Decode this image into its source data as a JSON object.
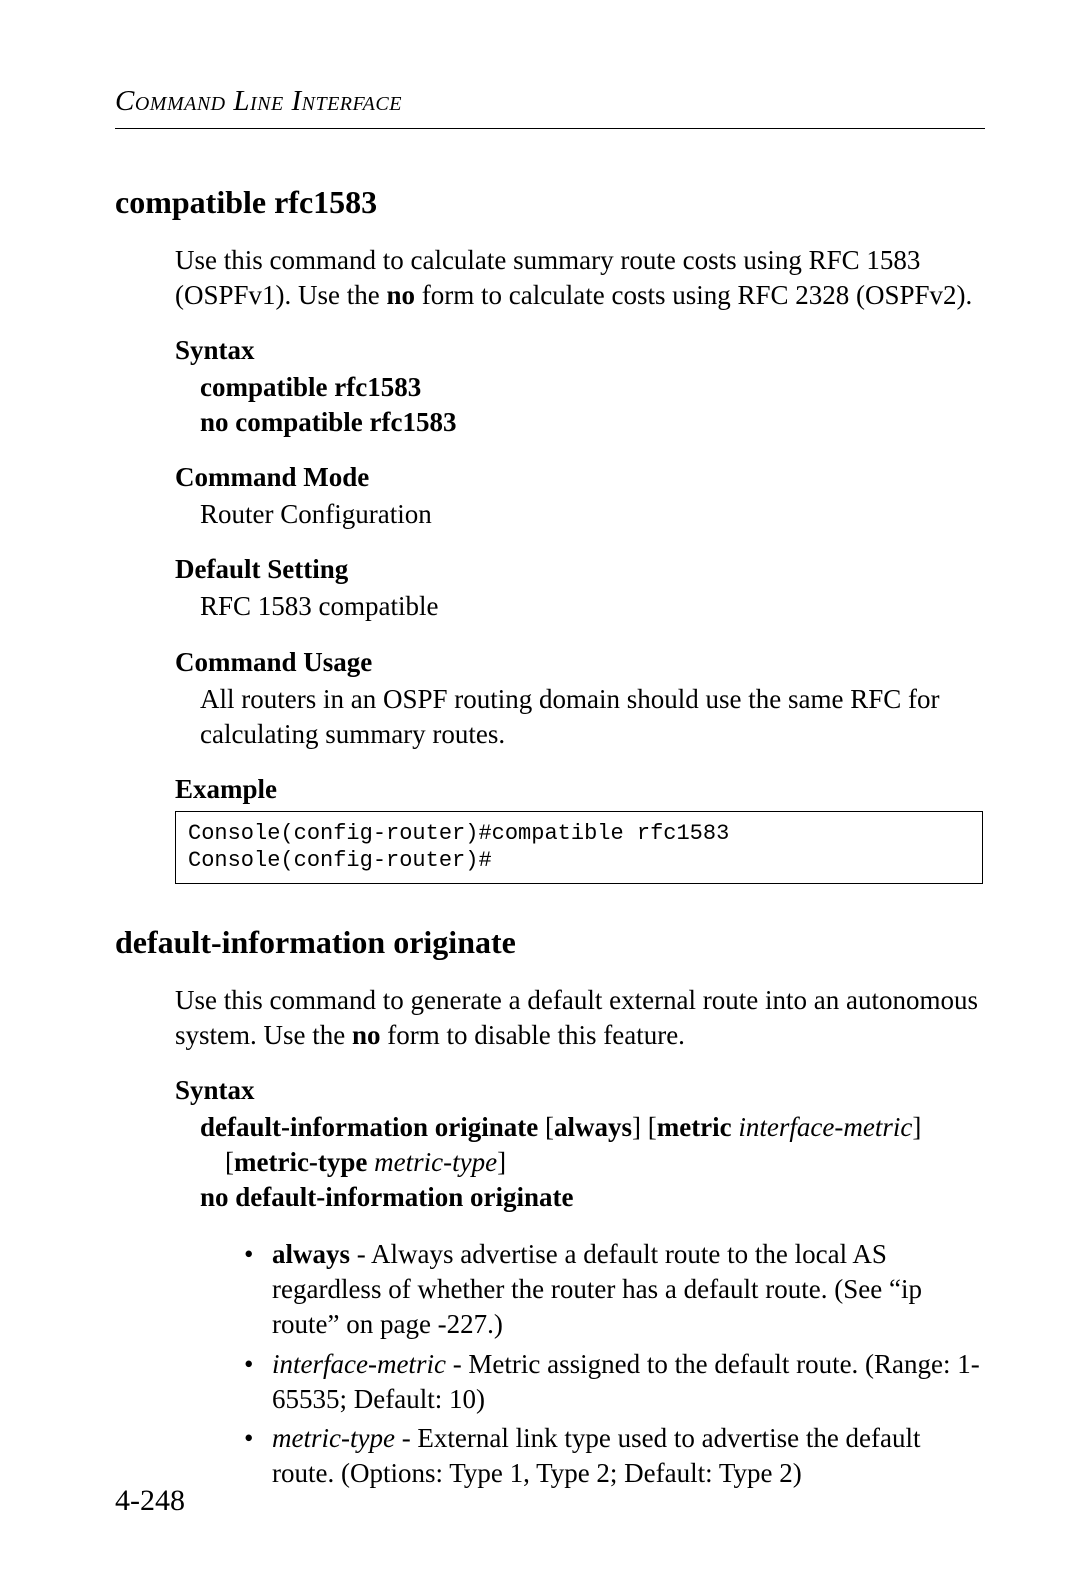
{
  "header": "Command Line Interface",
  "page_number": "4-248",
  "section1": {
    "title": "compatible rfc1583",
    "intro_pre": "Use this command to calculate summary route costs using RFC 1583 (OSPFv1). Use the ",
    "intro_bold": "no",
    "intro_post": " form to calculate costs using RFC 2328 (OSPFv2).",
    "syntax_head": "Syntax",
    "syntax_line1": "compatible rfc1583",
    "syntax_line2": "no compatible rfc1583",
    "mode_head": "Command Mode",
    "mode_body": "Router Configuration",
    "default_head": "Default Setting",
    "default_body": "RFC 1583 compatible",
    "usage_head": "Command Usage",
    "usage_body": "All routers in an OSPF routing domain should use the same RFC for calculating summary routes.",
    "example_head": "Example",
    "example_code": "Console(config-router)#compatible rfc1583\nConsole(config-router)#"
  },
  "section2": {
    "title": "default-information originate",
    "intro_pre": "Use this command to generate a default external route into an autonomous system. Use the ",
    "intro_bold": "no",
    "intro_post": " form to disable this feature.",
    "syntax_head": "Syntax",
    "s_bold1": "default-information originate ",
    "s_brk1a": "[",
    "s_bold2": "always",
    "s_brk1b": "] [",
    "s_bold3": "metric",
    "s_sp1": " ",
    "s_ital1": "interface-metric",
    "s_brk1c": "]",
    "s_brk2a": "[",
    "s_bold4": "metric-type",
    "s_sp2": " ",
    "s_ital2": "metric-type",
    "s_brk2b": "]",
    "s_no": "no default-information originate",
    "bullets": {
      "b1_bold": "always",
      "b1_rest": " - Always advertise a default route to the local AS regardless of whether the router has a default route. (See “ip route” on page -227.)",
      "b2_ital": "interface-metric",
      "b2_rest": " - Metric assigned to the default route. (Range: 1-65535; Default: 10)",
      "b3_ital": "metric-type",
      "b3_rest": " - External link type used to advertise the default route. (Options: Type 1, Type 2; Default: Type 2)"
    }
  }
}
